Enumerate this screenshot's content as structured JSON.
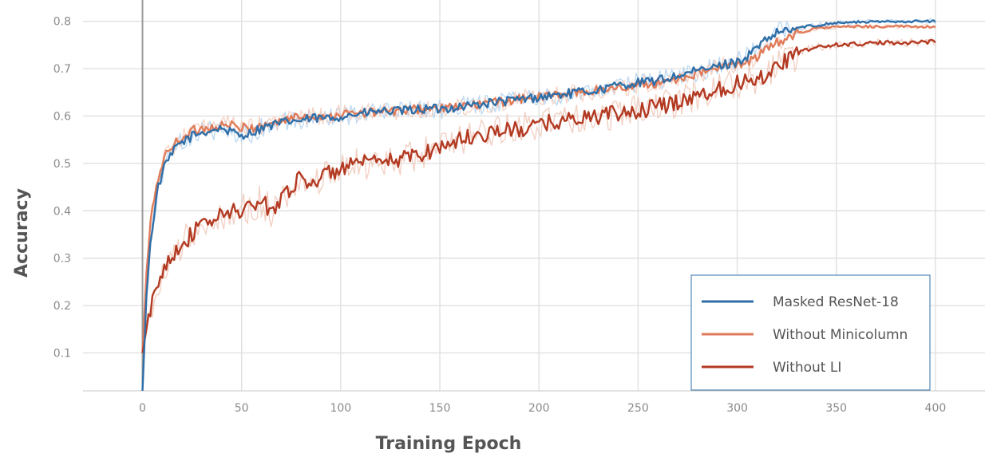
{
  "chart_data": {
    "type": "line",
    "xlabel": "Training Epoch",
    "ylabel": "Accuracy",
    "xlim": [
      -30,
      425
    ],
    "ylim": [
      0.02,
      0.845
    ],
    "xticks": [
      0,
      50,
      100,
      150,
      200,
      250,
      300,
      350,
      400
    ],
    "xtick_labels": [
      "0",
      "50",
      "100",
      "150",
      "200",
      "250",
      "300",
      "350",
      "400"
    ],
    "yticks": [
      0.1,
      0.2,
      0.3,
      0.4,
      0.5,
      0.6,
      0.7,
      0.8
    ],
    "ytick_labels": [
      "0.1",
      "0.2",
      "0.3",
      "0.4",
      "0.5",
      "0.6",
      "0.7",
      "0.8"
    ],
    "grid": true,
    "legend_position": "lower-right",
    "series": [
      {
        "name": "Masked ResNet-18",
        "color": "#2f6fa8",
        "band_color": "#a9cdef",
        "x": [
          0,
          2,
          4,
          6,
          8,
          10,
          12,
          15,
          18,
          22,
          26,
          30,
          35,
          40,
          45,
          50,
          55,
          60,
          65,
          70,
          75,
          80,
          85,
          90,
          95,
          100,
          110,
          120,
          130,
          140,
          150,
          160,
          170,
          180,
          190,
          200,
          210,
          220,
          230,
          240,
          250,
          260,
          270,
          280,
          290,
          300,
          305,
          310,
          315,
          320,
          325,
          330,
          335,
          340,
          345,
          350,
          360,
          370,
          380,
          390,
          400
        ],
        "y": [
          0.02,
          0.22,
          0.33,
          0.4,
          0.45,
          0.48,
          0.5,
          0.52,
          0.54,
          0.55,
          0.56,
          0.565,
          0.57,
          0.575,
          0.565,
          0.56,
          0.565,
          0.575,
          0.58,
          0.585,
          0.59,
          0.59,
          0.595,
          0.595,
          0.595,
          0.6,
          0.605,
          0.61,
          0.61,
          0.615,
          0.615,
          0.62,
          0.625,
          0.63,
          0.635,
          0.64,
          0.645,
          0.65,
          0.655,
          0.665,
          0.67,
          0.675,
          0.685,
          0.695,
          0.705,
          0.715,
          0.725,
          0.745,
          0.76,
          0.775,
          0.78,
          0.785,
          0.79,
          0.79,
          0.795,
          0.797,
          0.798,
          0.799,
          0.8,
          0.8,
          0.8
        ]
      },
      {
        "name": "Without Minicolumn",
        "color": "#e07b59",
        "band_color": "#f4c7b6",
        "x": [
          0,
          2,
          4,
          6,
          8,
          10,
          12,
          15,
          18,
          22,
          26,
          30,
          35,
          40,
          45,
          50,
          55,
          60,
          65,
          70,
          75,
          80,
          85,
          90,
          95,
          100,
          110,
          120,
          130,
          140,
          150,
          160,
          170,
          180,
          190,
          200,
          210,
          220,
          230,
          240,
          250,
          260,
          270,
          280,
          290,
          300,
          305,
          310,
          315,
          320,
          325,
          330,
          335,
          340,
          345,
          350,
          360,
          370,
          380,
          390,
          400
        ],
        "y": [
          0.1,
          0.27,
          0.37,
          0.43,
          0.47,
          0.5,
          0.52,
          0.535,
          0.55,
          0.56,
          0.57,
          0.575,
          0.575,
          0.58,
          0.58,
          0.575,
          0.575,
          0.58,
          0.585,
          0.59,
          0.595,
          0.6,
          0.6,
          0.6,
          0.6,
          0.605,
          0.605,
          0.61,
          0.61,
          0.615,
          0.615,
          0.62,
          0.625,
          0.63,
          0.635,
          0.64,
          0.645,
          0.65,
          0.655,
          0.66,
          0.665,
          0.67,
          0.68,
          0.69,
          0.7,
          0.71,
          0.715,
          0.725,
          0.74,
          0.755,
          0.765,
          0.775,
          0.78,
          0.785,
          0.787,
          0.788,
          0.789,
          0.789,
          0.789,
          0.789,
          0.789
        ]
      },
      {
        "name": "Without LI",
        "color": "#b33a22",
        "band_color": "#edc2b2",
        "x": [
          0,
          2,
          4,
          6,
          8,
          10,
          12,
          15,
          20,
          25,
          30,
          35,
          40,
          45,
          50,
          55,
          60,
          65,
          70,
          75,
          80,
          85,
          90,
          95,
          100,
          110,
          120,
          130,
          140,
          150,
          160,
          170,
          180,
          190,
          200,
          210,
          220,
          230,
          240,
          250,
          260,
          270,
          280,
          290,
          300,
          305,
          310,
          315,
          320,
          325,
          330,
          335,
          340,
          345,
          350,
          360,
          370,
          380,
          390,
          400
        ],
        "y": [
          0.1,
          0.15,
          0.19,
          0.22,
          0.25,
          0.27,
          0.29,
          0.31,
          0.33,
          0.35,
          0.37,
          0.38,
          0.39,
          0.4,
          0.4,
          0.41,
          0.42,
          0.4,
          0.43,
          0.45,
          0.47,
          0.46,
          0.47,
          0.48,
          0.49,
          0.5,
          0.5,
          0.51,
          0.52,
          0.535,
          0.55,
          0.56,
          0.57,
          0.57,
          0.58,
          0.59,
          0.595,
          0.6,
          0.605,
          0.61,
          0.62,
          0.63,
          0.645,
          0.655,
          0.67,
          0.675,
          0.68,
          0.69,
          0.705,
          0.72,
          0.73,
          0.74,
          0.745,
          0.748,
          0.75,
          0.752,
          0.754,
          0.755,
          0.756,
          0.757
        ]
      }
    ]
  }
}
